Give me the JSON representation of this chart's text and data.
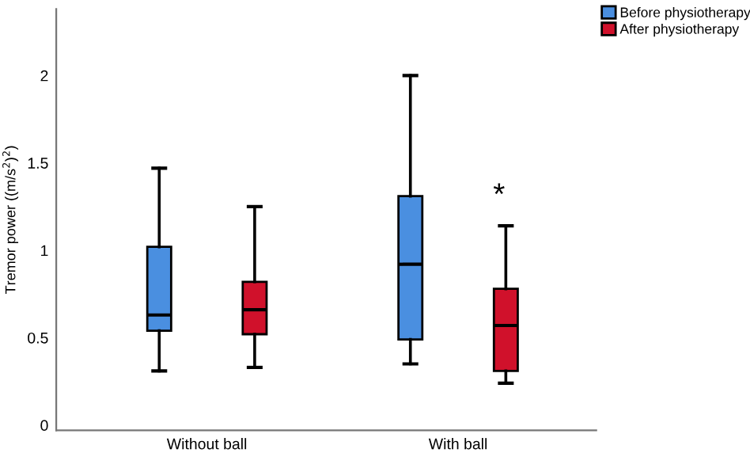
{
  "chart_data": {
    "type": "box",
    "ylabel": "Tremor power ((m/s$^{2}$)$^{2}$)",
    "categories": [
      "Without ball",
      "With ball"
    ],
    "series": [
      {
        "name": "Before physiotherapy",
        "color": "#4a8fe0",
        "boxes": [
          {
            "low": 0.31,
            "q1": 0.54,
            "median": 0.63,
            "q3": 1.02,
            "high": 1.47
          },
          {
            "low": 0.35,
            "q1": 0.49,
            "median": 0.92,
            "q3": 1.31,
            "high": 2.0
          }
        ]
      },
      {
        "name": "After physiotherapy",
        "color": "#d0112b",
        "boxes": [
          {
            "low": 0.33,
            "q1": 0.52,
            "median": 0.66,
            "q3": 0.82,
            "high": 1.25
          },
          {
            "low": 0.24,
            "q1": 0.31,
            "median": 0.57,
            "q3": 0.78,
            "high": 1.14
          }
        ]
      }
    ],
    "annotations": [
      "*"
    ],
    "ylim": [
      -0.03,
      2.38
    ],
    "yticks": [
      0,
      0.5,
      1,
      1.5,
      2
    ],
    "grid": false,
    "legend": "top right"
  }
}
